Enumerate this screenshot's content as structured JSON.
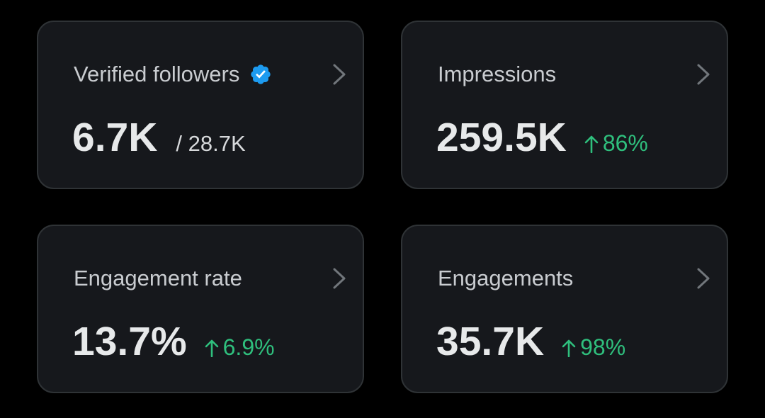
{
  "cards": [
    {
      "title": "Verified followers",
      "value": "6.7K",
      "total": "/ 28.7K",
      "icon": "verified-badge-icon"
    },
    {
      "title": "Impressions",
      "value": "259.5K",
      "change": "86%",
      "change_direction": "up"
    },
    {
      "title": "Engagement rate",
      "value": "13.7%",
      "change": "6.9%",
      "change_direction": "up"
    },
    {
      "title": "Engagements",
      "value": "35.7K",
      "change": "98%",
      "change_direction": "up"
    }
  ],
  "colors": {
    "background": "#000000",
    "card_background": "#16181c",
    "card_border": "#2f3336",
    "value_text": "#e7e9ea",
    "title_text": "#c9ccd0",
    "positive_change": "#2fbf7d",
    "verified_badge": "#1d9bf0",
    "chevron": "#71767b"
  }
}
